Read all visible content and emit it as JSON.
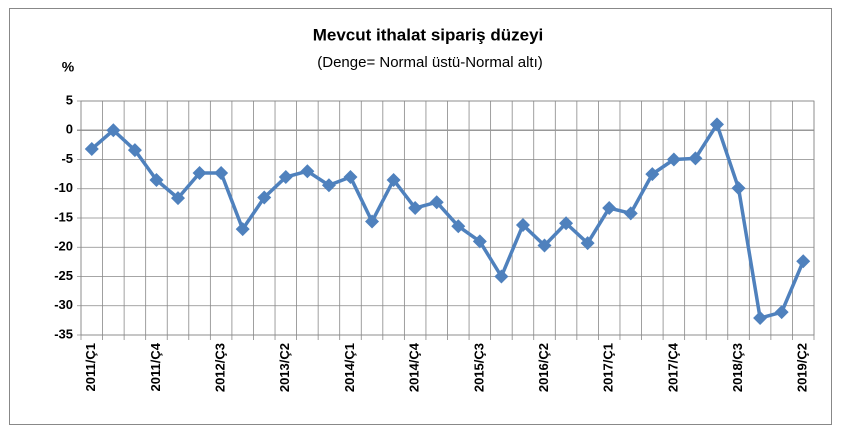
{
  "chart_data": {
    "type": "line",
    "title": "Mevcut ithalat sipariş düzeyi",
    "subtitle": "(Denge= Normal üstü-Normal altı)",
    "y_label": "%",
    "categories": [
      "2011/Ç1",
      null,
      null,
      "2011/Ç4",
      null,
      null,
      "2012/Ç3",
      null,
      null,
      "2013/Ç2",
      null,
      null,
      "2014/Ç1",
      null,
      null,
      "2014/Ç4",
      null,
      null,
      "2015/Ç3",
      null,
      null,
      "2016/Ç2",
      null,
      null,
      "2017/Ç1",
      null,
      null,
      "2017/Ç4",
      null,
      null,
      "2018/Ç3",
      null,
      null,
      "2019/Ç2"
    ],
    "series": [
      {
        "name": "Mevcut ithalat sipariş düzeyi",
        "color": "#4f81bd",
        "values": [
          -3.2,
          0,
          -3.4,
          -8.5,
          -11.6,
          -7.3,
          -7.3,
          -16.9,
          -11.5,
          -8,
          -7,
          -9.4,
          -8,
          -15.6,
          -8.5,
          -13.3,
          -12.3,
          -16.4,
          -19,
          -25,
          -16.2,
          -19.7,
          -15.9,
          -19.3,
          -13.3,
          -14.2,
          -7.5,
          -5,
          -4.8,
          1,
          -9.9,
          -32.1,
          -31.1,
          -22.4
        ]
      }
    ],
    "ylim": [
      -35,
      5
    ],
    "yticks": [
      -35,
      -30,
      -25,
      -20,
      -15,
      -10,
      -5,
      0,
      5
    ],
    "grid": true
  }
}
